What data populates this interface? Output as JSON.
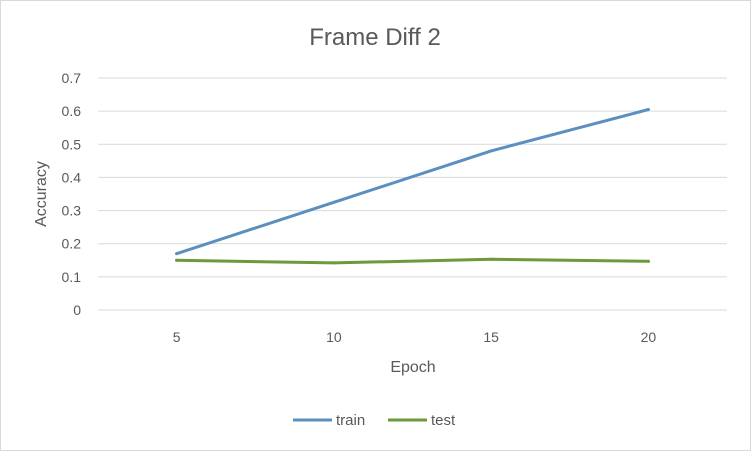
{
  "chart_data": {
    "type": "line",
    "title": "Frame Diff 2",
    "xlabel": "Epoch",
    "ylabel": "Accuracy",
    "categories": [
      "5",
      "10",
      "15",
      "20"
    ],
    "ylim": [
      0,
      0.7
    ],
    "yticks": [
      "0",
      "0.1",
      "0.2",
      "0.3",
      "0.4",
      "0.5",
      "0.6",
      "0.7"
    ],
    "grid": true,
    "legend_position": "bottom",
    "series": [
      {
        "name": "train",
        "color": "#5b8fc0",
        "values": [
          0.17,
          0.325,
          0.48,
          0.605
        ]
      },
      {
        "name": "test",
        "color": "#6a9a3a",
        "values": [
          0.15,
          0.142,
          0.153,
          0.147
        ]
      }
    ]
  }
}
